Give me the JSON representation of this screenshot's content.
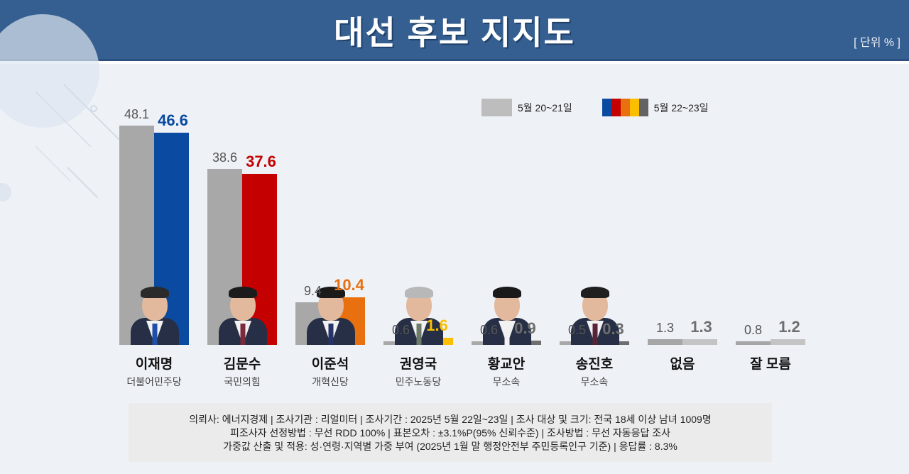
{
  "header": {
    "title": "대선 후보 지지도",
    "unit": "[ 단위 % ]"
  },
  "legend": {
    "previous": {
      "label": "5월 20~21일",
      "color": "#bdbdbd"
    },
    "current": {
      "label": "5월 22~23일",
      "colors": [
        "#0a4aa0",
        "#c40000",
        "#e8700f",
        "#fbbf00",
        "#636363"
      ]
    }
  },
  "candidates": [
    {
      "name": "이재명",
      "party": "더불어민주당",
      "prev": "48.1",
      "curr": "46.6",
      "color": "#0a4aa0",
      "label_color": "#0a4aa0"
    },
    {
      "name": "김문수",
      "party": "국민의힘",
      "prev": "38.6",
      "curr": "37.6",
      "color": "#c40000",
      "label_color": "#c40000"
    },
    {
      "name": "이준석",
      "party": "개혁신당",
      "prev": "9.4",
      "curr": "10.4",
      "color": "#e8700f",
      "label_color": "#e8700f"
    },
    {
      "name": "권영국",
      "party": "민주노동당",
      "prev": "0.6",
      "curr": "1.6",
      "color": "#fbbf00",
      "label_color": "#fbbf00"
    },
    {
      "name": "황교안",
      "party": "무소속",
      "prev": "0.6",
      "curr": "0.9",
      "color": "#6e6e6e",
      "label_color": "#6e6e6e"
    },
    {
      "name": "송진호",
      "party": "무소속",
      "prev": "0.5",
      "curr": "0.3",
      "color": "#6e6e6e",
      "label_color": "#6e6e6e"
    },
    {
      "name": "없음",
      "party": "",
      "prev": "1.3",
      "curr": "1.3",
      "color": "#c4c4c4",
      "label_color": "#6e6e6e"
    },
    {
      "name": "잘 모름",
      "party": "",
      "prev": "0.8",
      "curr": "1.2",
      "color": "#c4c4c4",
      "label_color": "#6e6e6e"
    }
  ],
  "footer": {
    "line1": "의뢰사: 에너지경제 | 조사기관 : 리얼미터  |  조사기간 : 2025년 5월 22일~23일 | 조사 대상 및 크기: 전국 18세 이상 남녀 1009명",
    "line2": "피조사자 선정방법 : 무선 RDD 100% | 표본오차 : ±3.1%P(95% 신뢰수준) | 조사방법 : 무선 자동응답 조사",
    "line3": "가중값 산출 및 적용: 성·연령·지역별 가중 부여 (2025년 1월 말 행정안전부 주민등록인구 기준) | 응답률 : 8.3%"
  },
  "chart_data": {
    "type": "bar",
    "title": "대선 후보 지지도",
    "unit": "%",
    "categories": [
      "이재명",
      "김문수",
      "이준석",
      "권영국",
      "황교안",
      "송진호",
      "없음",
      "잘 모름"
    ],
    "category_subtitles": [
      "더불어민주당",
      "국민의힘",
      "개혁신당",
      "민주노동당",
      "무소속",
      "무소속",
      "",
      ""
    ],
    "series": [
      {
        "name": "5월 20~21일",
        "values": [
          48.1,
          38.6,
          9.4,
          0.6,
          0.6,
          0.5,
          1.3,
          0.8
        ]
      },
      {
        "name": "5월 22~23일",
        "values": [
          46.6,
          37.6,
          10.4,
          1.6,
          0.9,
          0.3,
          1.3,
          1.2
        ]
      }
    ],
    "xlabel": "",
    "ylabel": "",
    "grid": false,
    "legend_position": "top-right"
  }
}
